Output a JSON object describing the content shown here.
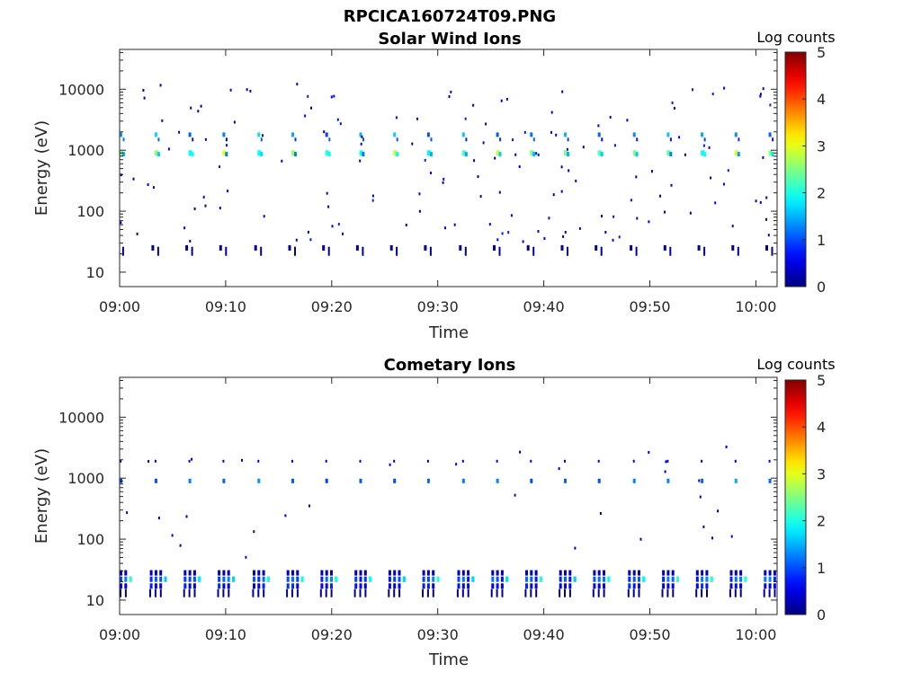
{
  "figure_title": "RPCICA160724T09.PNG",
  "chart_data": [
    {
      "type": "heatmap",
      "title": "Solar Wind Ions",
      "xlabel": "Time",
      "ylabel": "Energy (eV)",
      "x_ticks": [
        "09:00",
        "09:10",
        "09:20",
        "09:30",
        "09:40",
        "09:50",
        "10:00"
      ],
      "x_range": [
        "09:00",
        "10:02"
      ],
      "y_scale": "log",
      "y_ticks": [
        "10",
        "100",
        "1000",
        "10000"
      ],
      "y_range": [
        5.8,
        45000
      ],
      "colorbar": {
        "label": "Log counts",
        "range": [
          0,
          5
        ],
        "ticks": [
          "0",
          "1",
          "2",
          "3",
          "4",
          "5"
        ]
      },
      "colormap": "jet",
      "grid": false,
      "band_dominant_energies_eV": [
        900,
        1800,
        25
      ],
      "sweep_times_min": [
        0,
        3.3,
        6.5,
        9.7,
        13,
        16.2,
        19.4,
        22.6,
        25.8,
        29,
        32.3,
        35.5,
        38.7,
        41.9,
        45.1,
        48.4,
        51.6,
        54.8,
        58,
        61.2
      ]
    },
    {
      "type": "heatmap",
      "title": "Cometary Ions",
      "xlabel": "Time",
      "ylabel": "Energy (eV)",
      "x_ticks": [
        "09:00",
        "09:10",
        "09:20",
        "09:30",
        "09:40",
        "09:50",
        "10:00"
      ],
      "x_range": [
        "09:00",
        "10:02"
      ],
      "y_scale": "log",
      "y_ticks": [
        "10",
        "100",
        "1000",
        "10000"
      ],
      "y_range": [
        5.8,
        45000
      ],
      "colorbar": {
        "label": "Log counts",
        "range": [
          0,
          5
        ],
        "ticks": [
          "0",
          "1",
          "2",
          "3",
          "4",
          "5"
        ]
      },
      "colormap": "jet",
      "grid": false,
      "band_dominant_energies_eV": [
        900,
        25,
        13
      ],
      "sweep_times_min": [
        0,
        3.3,
        6.5,
        9.7,
        13,
        16.2,
        19.4,
        22.6,
        25.8,
        29,
        32.3,
        35.5,
        38.7,
        41.9,
        45.1,
        48.4,
        51.6,
        54.8,
        58,
        61.2
      ]
    }
  ]
}
